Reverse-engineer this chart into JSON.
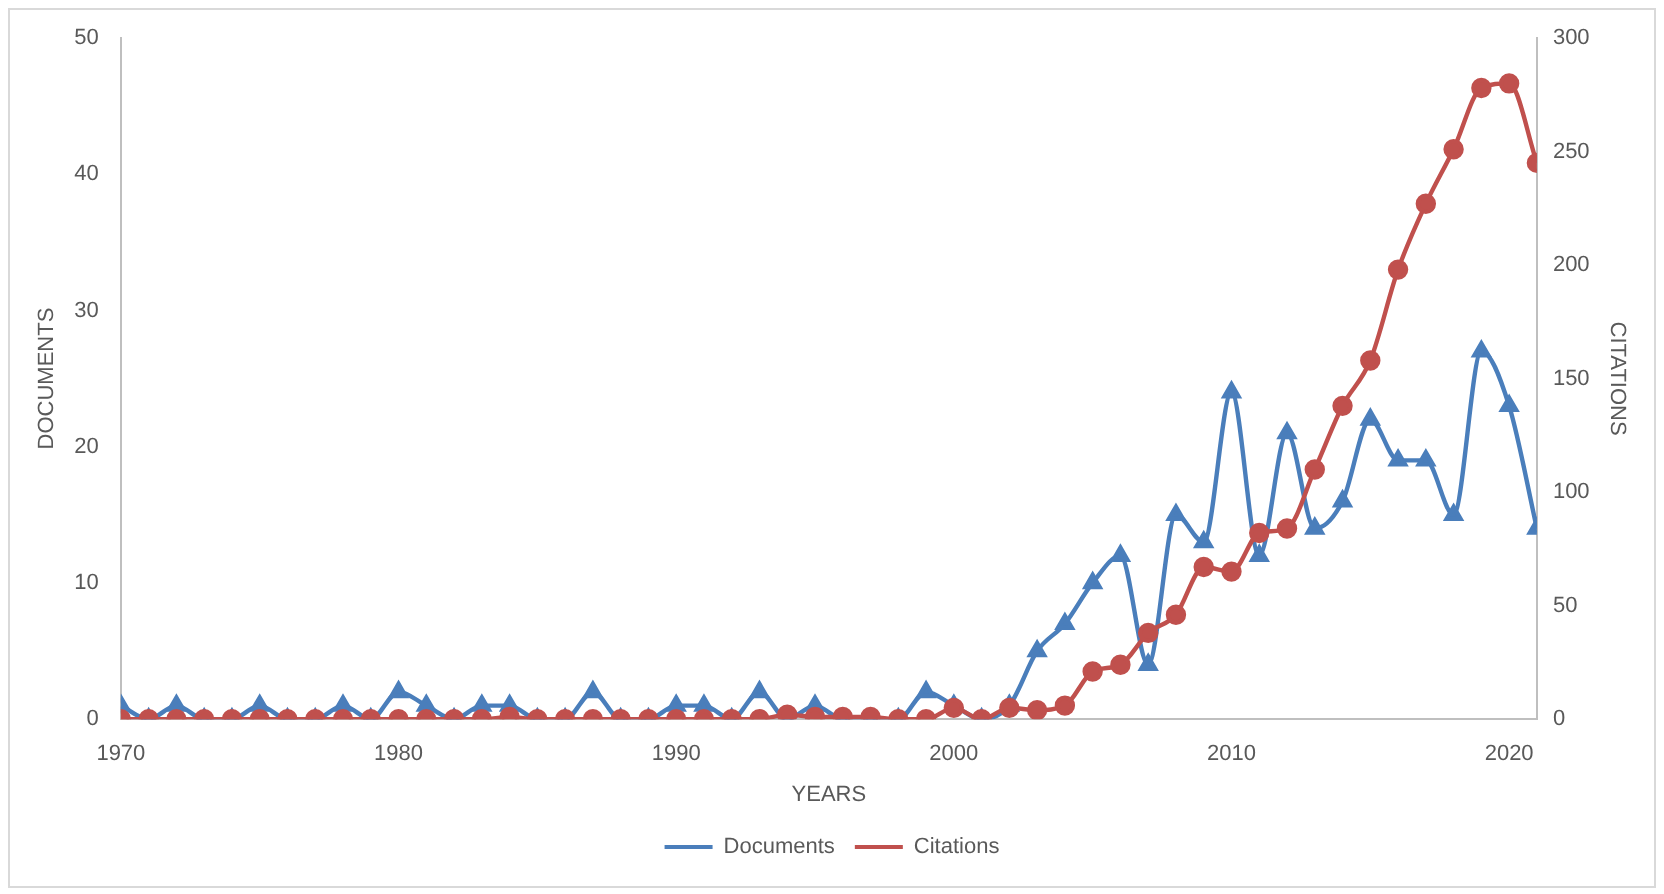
{
  "chart_data": {
    "type": "line",
    "xlabel": "YEARS",
    "ylabel": "DOCUMENTS",
    "y2label": "CITATIONS",
    "x": [
      1970,
      1971,
      1972,
      1973,
      1974,
      1975,
      1976,
      1977,
      1978,
      1979,
      1980,
      1981,
      1982,
      1983,
      1984,
      1985,
      1986,
      1987,
      1988,
      1989,
      1990,
      1991,
      1992,
      1993,
      1994,
      1995,
      1996,
      1997,
      1998,
      1999,
      2000,
      2001,
      2002,
      2003,
      2004,
      2005,
      2006,
      2007,
      2008,
      2009,
      2010,
      2011,
      2012,
      2013,
      2014,
      2015,
      2016,
      2017,
      2018,
      2019,
      2020,
      2021
    ],
    "series": [
      {
        "name": "Documents",
        "color": "#4a7ebb",
        "marker": "triangle",
        "values": [
          1,
          0,
          1,
          0,
          0,
          1,
          0,
          0,
          1,
          0,
          2,
          1,
          0,
          1,
          1,
          0,
          0,
          2,
          0,
          0,
          1,
          1,
          0,
          2,
          0,
          1,
          0,
          0,
          0,
          2,
          1,
          0,
          1,
          5,
          7,
          10,
          12,
          4,
          15,
          13,
          24,
          12,
          21,
          14,
          16,
          22,
          19,
          19,
          15,
          27,
          23,
          14
        ]
      },
      {
        "name": "Citations",
        "color": "#c0504d",
        "marker": "circle",
        "axis": "y2",
        "values": [
          0,
          0,
          0,
          0,
          0,
          0,
          0,
          0,
          0,
          0,
          0,
          0,
          0,
          0,
          1,
          0,
          0,
          0,
          0,
          0,
          0,
          0,
          0,
          0,
          2,
          1,
          1,
          1,
          0,
          0,
          5,
          0,
          5,
          4,
          6,
          21,
          24,
          38,
          46,
          67,
          65,
          82,
          84,
          110,
          138,
          158,
          198,
          227,
          251,
          278,
          280,
          245
        ]
      }
    ],
    "xlim": [
      1970,
      2021
    ],
    "xticks": [
      1970,
      1980,
      1990,
      2000,
      2010,
      2020
    ],
    "ylim": [
      0,
      50
    ],
    "yticks": [
      0,
      10,
      20,
      30,
      40,
      50
    ],
    "y2lim": [
      0,
      300
    ],
    "y2ticks": [
      0,
      50,
      100,
      150,
      200,
      250,
      300
    ],
    "grid": false,
    "legend": "bottom",
    "line_style": "solid"
  }
}
